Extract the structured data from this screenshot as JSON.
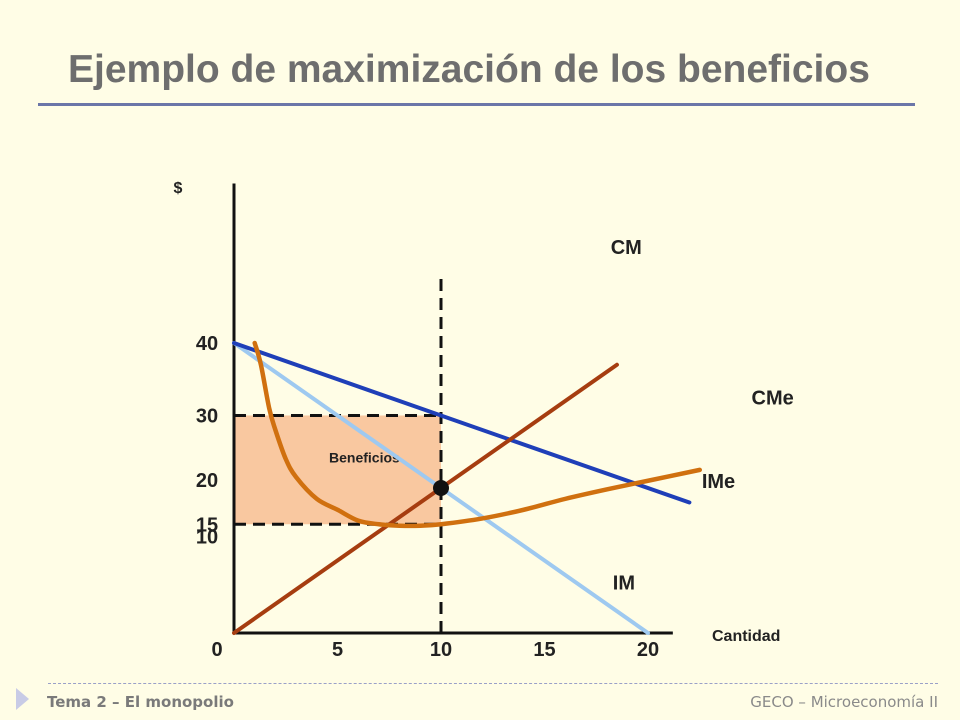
{
  "slide": {
    "title": "Ejemplo de maximización de los beneficios",
    "footer_left": "Tema 2 – El monopolio",
    "footer_right": "GECO – Microeconomía II"
  },
  "colors": {
    "background": "#fffde6",
    "IMe": "#1f3fb8",
    "IM": "#9ec9f0",
    "CM": "#a63d10",
    "CMe": "#d0700f",
    "profit_area": "#f9c8a0"
  },
  "chart_data": {
    "type": "line",
    "ylabel": "$",
    "xlabel": "Cantidad",
    "x_ticks": [
      "0",
      "5",
      "10",
      "15",
      "20"
    ],
    "y_ticks": [
      "40",
      "30",
      "20",
      "15",
      "10"
    ],
    "x_tick_values": [
      0,
      5,
      10,
      15,
      20
    ],
    "y_tick_values": [
      40,
      30,
      20,
      15,
      10
    ],
    "xlim": [
      0,
      20
    ],
    "ylim": [
      0,
      40
    ],
    "series": [
      {
        "name": "IMe",
        "color": "#1f3fb8",
        "x": [
          0,
          22
        ],
        "y": [
          40,
          18
        ]
      },
      {
        "name": "IM",
        "color": "#9ec9f0",
        "x": [
          0,
          20
        ],
        "y": [
          40,
          0
        ]
      },
      {
        "name": "CM",
        "color": "#a63d10",
        "x": [
          0,
          18.5
        ],
        "y": [
          0,
          37
        ]
      },
      {
        "name": "CMe",
        "color": "#d0700f",
        "x": [
          1,
          1.3,
          1.7,
          2,
          2.5,
          3,
          4,
          5,
          6,
          7,
          8,
          9,
          10,
          12,
          14,
          16,
          18,
          20,
          22.5
        ],
        "y": [
          40,
          37,
          31,
          28,
          24,
          21.5,
          18.5,
          17,
          15.5,
          15,
          14.8,
          14.8,
          15,
          15.8,
          17,
          18.5,
          19.8,
          21,
          22.5
        ]
      }
    ],
    "profit_region": {
      "label": "Beneficios",
      "x": [
        0,
        10
      ],
      "y": [
        15,
        30
      ]
    },
    "reference_lines": [
      {
        "type": "vertical",
        "x": 10,
        "y_from": 0,
        "y_to": 40
      },
      {
        "type": "horizontal",
        "y": 30,
        "x_from": 0,
        "x_to": 10
      },
      {
        "type": "horizontal",
        "y": 15,
        "x_from": 0,
        "x_to": 10
      }
    ],
    "highlight_point": {
      "x": 10,
      "y": 20
    }
  }
}
